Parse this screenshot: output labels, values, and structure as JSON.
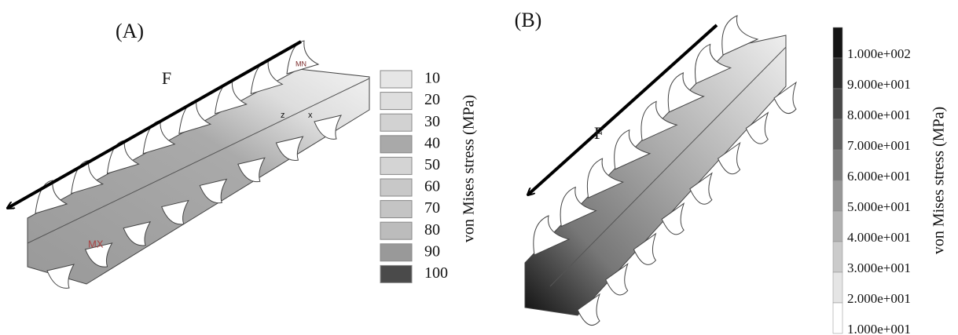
{
  "panel_a": {
    "label": "(A)",
    "force_label": "F",
    "markers": {
      "min": "MN",
      "max": "MX",
      "axis_z": "z",
      "axis_x": "x"
    },
    "legend": {
      "title": "von Mises stress (MPa)",
      "values": [
        "10",
        "20",
        "30",
        "40",
        "50",
        "60",
        "70",
        "80",
        "90",
        "100"
      ]
    }
  },
  "panel_b": {
    "label": "(B)",
    "force_label": "F",
    "legend": {
      "title": "von Mises stress (MPa)",
      "values": [
        "1.000e+002",
        "9.000e+001",
        "8.000e+001",
        "7.000e+001",
        "6.000e+001",
        "5.000e+001",
        "4.000e+001",
        "3.000e+001",
        "2.000e+001",
        "1.000e+001"
      ]
    }
  }
}
